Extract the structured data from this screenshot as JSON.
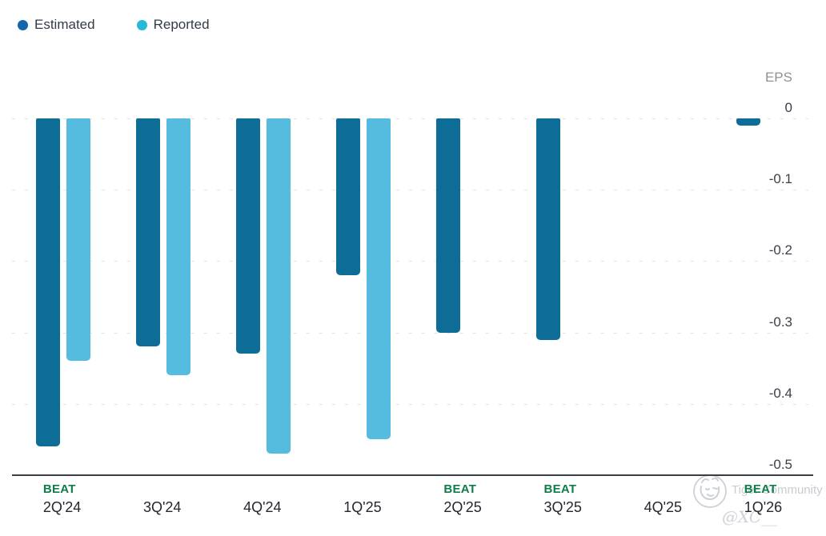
{
  "legend": [
    {
      "label": "Estimated",
      "color": "#1565ad"
    },
    {
      "label": "Reported",
      "color": "#29b8d8"
    }
  ],
  "axis": {
    "unit_label": "EPS",
    "ticks": [
      "0",
      "-0.1",
      "-0.2",
      "-0.3",
      "-0.4",
      "-0.5"
    ]
  },
  "chart_data": {
    "type": "bar",
    "title": "",
    "ylabel": "EPS",
    "ylim": [
      -0.5,
      0
    ],
    "grid": "dashed-horizontal",
    "legend_position": "top-left",
    "categories": [
      "2Q'24",
      "3Q'24",
      "4Q'24",
      "1Q'25",
      "2Q'25",
      "3Q'25",
      "4Q'25",
      "1Q'26"
    ],
    "series": [
      {
        "name": "Estimated",
        "color": "#0d6d96",
        "values": [
          -0.46,
          -0.32,
          -0.33,
          -0.22,
          -0.3,
          -0.31,
          null,
          -0.01
        ]
      },
      {
        "name": "Reported",
        "color": "#55bcdf",
        "values": [
          -0.34,
          -0.36,
          -0.47,
          -0.45,
          null,
          null,
          null,
          null
        ]
      }
    ],
    "beat": [
      true,
      false,
      false,
      false,
      true,
      true,
      false,
      true
    ],
    "beat_text": "BEAT"
  },
  "watermark": {
    "brand": "Tiger Community",
    "handle": "@XC__"
  }
}
